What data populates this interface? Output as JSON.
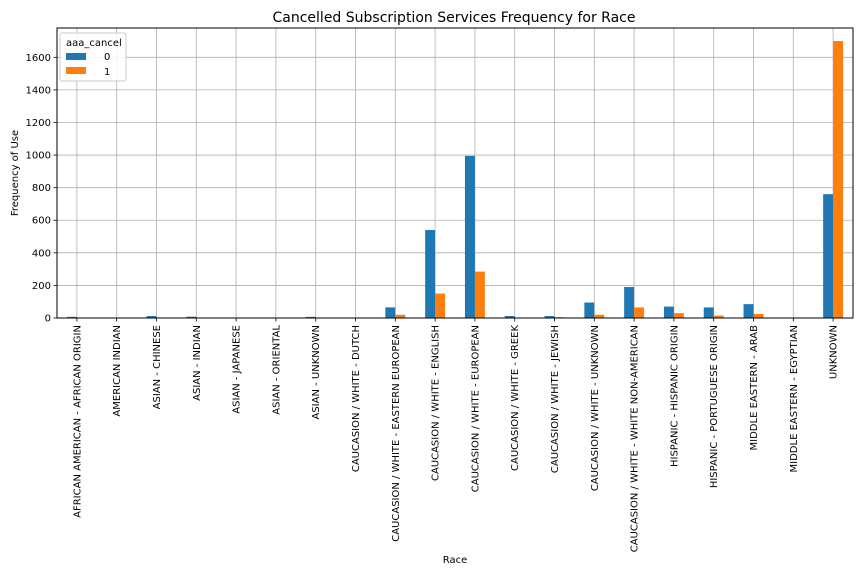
{
  "chart_data": {
    "type": "bar",
    "title": "Cancelled Subscription Services Frequency for Race",
    "xlabel": "Race",
    "ylabel": "Frequency of Use",
    "ylim": [
      0,
      1780
    ],
    "yticks": [
      0,
      200,
      400,
      600,
      800,
      1000,
      1200,
      1400,
      1600
    ],
    "grid": true,
    "legend": {
      "title": "aaa_cancel",
      "placement": "top-left"
    },
    "categories": [
      "AFRICAN AMERICAN - AFRICAN ORIGIN",
      "AMERICAN INDIAN",
      "ASIAN - CHINESE",
      "ASIAN - INDIAN",
      "ASIAN - JAPANESE",
      "ASIAN - ORIENTAL",
      "ASIAN - UNKNOWN",
      "CAUCASION / WHITE - DUTCH",
      "CAUCASION / WHITE - EASTERN EUROPEAN",
      "CAUCASION / WHITE - ENGLISH",
      "CAUCASION / WHITE - EUROPEAN",
      "CAUCASION / WHITE - GREEK",
      "CAUCASION / WHITE - JEWISH",
      "CAUCASION / WHITE - UNKNOWN",
      "CAUCASION / WHITE - WHITE NON-AMERICAN",
      "HISPANIC - HISPANIC ORIGIN",
      "HISPANIC - PORTUGUESE ORIGIN",
      "MIDDLE EASTERN - ARAB",
      "MIDDLE EASTERN - EGYPTIAN",
      "UNKNOWN"
    ],
    "series": [
      {
        "name": "0",
        "color": "#1f77b4",
        "values": [
          7,
          2,
          12,
          8,
          2,
          2,
          7,
          2,
          65,
          540,
          995,
          12,
          12,
          95,
          190,
          70,
          65,
          85,
          2,
          760
        ]
      },
      {
        "name": "1",
        "color": "#ff7f0e",
        "values": [
          1,
          0,
          2,
          1,
          0,
          0,
          1,
          0,
          20,
          150,
          285,
          2,
          5,
          20,
          65,
          30,
          15,
          25,
          0,
          1700
        ]
      }
    ]
  }
}
